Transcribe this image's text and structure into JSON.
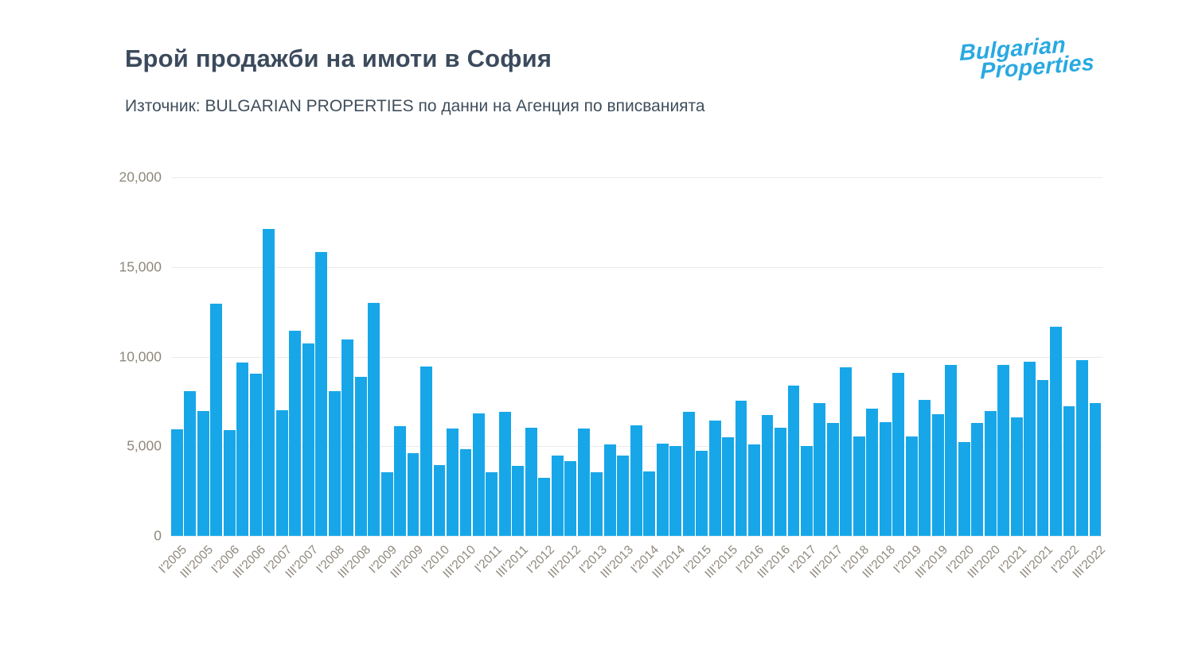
{
  "header": {
    "title": "Брой продажби на имоти в София",
    "source": "Източник: BULGARIAN PROPERTIES по данни на Агенция по вписванията"
  },
  "logo": {
    "line1": "Bulgarian",
    "line2": "Properties",
    "color": "#29a9e1"
  },
  "colors": {
    "bar": "#17a7e9",
    "grid": "#eaeae8",
    "axis_text": "#8e887d",
    "title_text": "#3b4a5c"
  },
  "chart_data": {
    "type": "bar",
    "title": "Брой продажби на имоти в София",
    "subtitle": "Източник: BULGARIAN PROPERTIES по данни на Агенция по вписванията",
    "xlabel": "",
    "ylabel": "",
    "legend": "none",
    "grid": "horizontal",
    "ylim": [
      0,
      20000
    ],
    "y_ticks": [
      0,
      5000,
      10000,
      15000,
      20000
    ],
    "y_tick_labels": [
      "0",
      "5,000",
      "10,000",
      "15,000",
      "20,000"
    ],
    "x_tick_every": 2,
    "bar_color": "#17a7e9",
    "x": [
      "I'2005",
      "II'2005",
      "III'2005",
      "IV'2005",
      "I'2006",
      "II'2006",
      "III'2006",
      "IV'2006",
      "I'2007",
      "II'2007",
      "III'2007",
      "IV'2007",
      "I'2008",
      "II'2008",
      "III'2008",
      "IV'2008",
      "I'2009",
      "II'2009",
      "III'2009",
      "IV'2009",
      "I'2010",
      "II'2010",
      "III'2010",
      "IV'2010",
      "I'2011",
      "II'2011",
      "III'2011",
      "IV'2011",
      "I'2012",
      "II'2012",
      "III'2012",
      "IV'2012",
      "I'2013",
      "II'2013",
      "III'2013",
      "IV'2013",
      "I'2014",
      "II'2014",
      "III'2014",
      "IV'2014",
      "I'2015",
      "II'2015",
      "III'2015",
      "IV'2015",
      "I'2016",
      "II'2016",
      "III'2016",
      "IV'2016",
      "I'2017",
      "II'2017",
      "III'2017",
      "IV'2017",
      "I'2018",
      "II'2018",
      "III'2018",
      "IV'2018",
      "I'2019",
      "II'2019",
      "III'2019",
      "IV'2019",
      "I'2020",
      "II'2020",
      "III'2020",
      "IV'2020",
      "I'2021",
      "II'2021",
      "III'2021",
      "IV'2021",
      "I'2022",
      "II'2022",
      "III'2022"
    ],
    "values": [
      5950,
      8050,
      6950,
      12950,
      5900,
      9650,
      9050,
      17100,
      7000,
      11450,
      10750,
      15850,
      8050,
      10950,
      8850,
      13000,
      3550,
      6100,
      4600,
      9450,
      3950,
      6000,
      4850,
      6850,
      3550,
      6900,
      3900,
      6050,
      3250,
      4500,
      4150,
      6000,
      3550,
      5100,
      4500,
      6150,
      3600,
      5150,
      5000,
      6900,
      4750,
      6450,
      5500,
      7550,
      5100,
      6750,
      6050,
      8400,
      5000,
      7400,
      6300,
      9400,
      5550,
      7100,
      6350,
      9100,
      5550,
      7600,
      6800,
      9550,
      5250,
      6300,
      6950,
      9550,
      6600,
      9700,
      8700,
      11650,
      7250,
      9800,
      7400
    ]
  }
}
